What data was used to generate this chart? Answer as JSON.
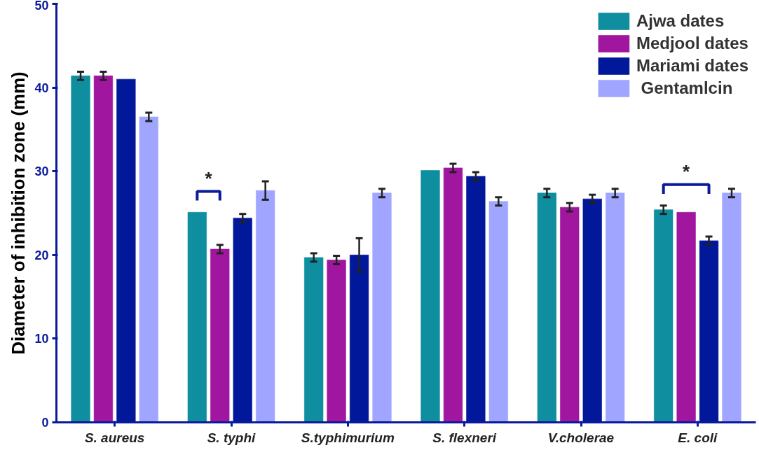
{
  "chart_data": {
    "type": "bar",
    "ylabel": "Diameter of inhibition zone (mm)",
    "categories": [
      "S. aureus",
      "S. typhi",
      "S.typhimurium",
      "S. flexneri",
      "V.cholerae",
      "E. coli"
    ],
    "series": [
      {
        "name": "Ajwa dates",
        "color": "#0e8e9e",
        "values": [
          41.4,
          25.1,
          19.7,
          30.1,
          27.4,
          25.4
        ],
        "errors": [
          0.5,
          null,
          0.5,
          null,
          0.5,
          0.5
        ]
      },
      {
        "name": "Medjool dates",
        "color": "#a0169e",
        "values": [
          41.4,
          20.7,
          19.4,
          30.4,
          25.7,
          25.1
        ],
        "errors": [
          0.5,
          0.5,
          0.5,
          0.5,
          0.5,
          null
        ]
      },
      {
        "name": "Mariami dates",
        "color": "#001899",
        "values": [
          41.0,
          24.4,
          20.0,
          29.4,
          26.7,
          21.7
        ],
        "errors": [
          null,
          0.5,
          2.0,
          0.5,
          0.5,
          0.5
        ]
      },
      {
        "name": " Gentamlcin",
        "color": "#a0a6ff",
        "values": [
          36.5,
          27.7,
          27.4,
          26.4,
          27.4,
          27.4
        ],
        "errors": [
          0.5,
          1.1,
          0.5,
          0.5,
          0.5,
          0.5
        ]
      }
    ],
    "ylim": [
      0,
      50
    ],
    "yticks": [
      0,
      10,
      20,
      30,
      40,
      50
    ],
    "grid": false,
    "legend": "top right",
    "annotations": [
      "*",
      "*"
    ]
  }
}
